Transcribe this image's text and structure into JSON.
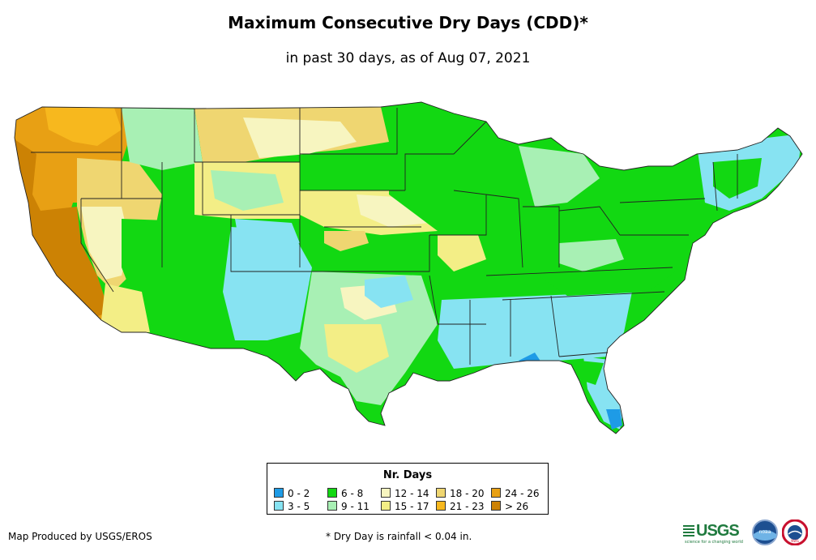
{
  "title": "Maximum Consecutive Dry Days (CDD)*",
  "subtitle": "in past 30 days, as of Aug 07, 2021",
  "legend": {
    "title": "Nr. Days",
    "items": [
      {
        "label": "0 - 2",
        "color": "#1e9be6"
      },
      {
        "label": "3 - 5",
        "color": "#87e3f2"
      },
      {
        "label": "6 - 8",
        "color": "#12d812"
      },
      {
        "label": "9 - 11",
        "color": "#a8f0b4"
      },
      {
        "label": "12 - 14",
        "color": "#f7f5c0"
      },
      {
        "label": "15 - 17",
        "color": "#f3ee86"
      },
      {
        "label": "18 - 20",
        "color": "#efd671"
      },
      {
        "label": "21 - 23",
        "color": "#f7b81e"
      },
      {
        "label": "24 - 26",
        "color": "#e8a014"
      },
      {
        "label": "> 26",
        "color": "#cc8204"
      }
    ]
  },
  "credit": "Map Produced by USGS/EROS",
  "footnote": "* Dry Day is rainfall < 0.04 in.",
  "logos": {
    "usgs_text": "USGS",
    "usgs_tagline": "science for a changing world",
    "noaa_text": "noaa",
    "nws_text": "NWS"
  }
}
